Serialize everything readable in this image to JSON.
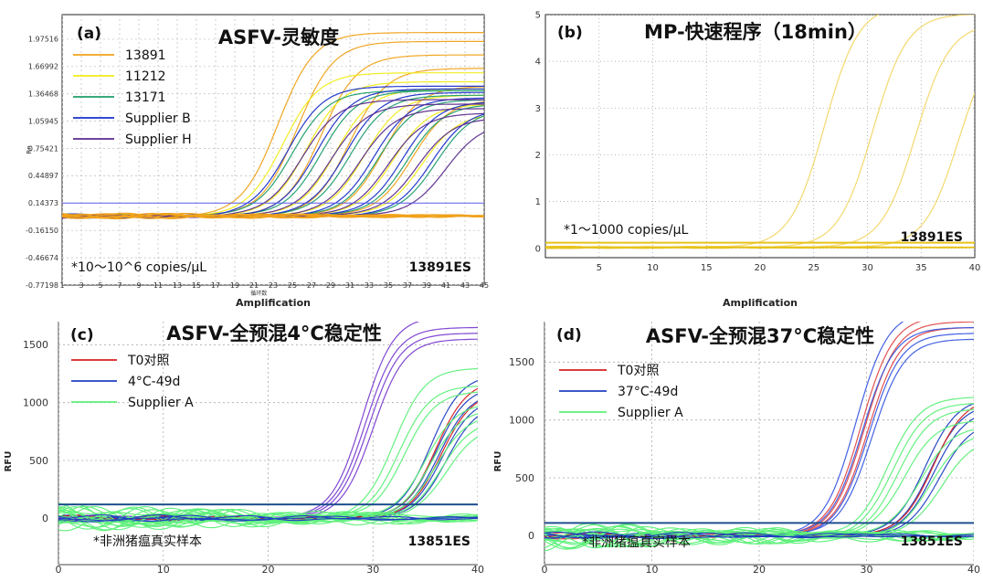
{
  "chart_data": [
    {
      "id": "a",
      "type": "line",
      "panel_tag": "(a)",
      "title": "ASFV-灵敏度",
      "xlabel": "Amplification",
      "xlabel_sub": "循环数",
      "ylabel": "Rn",
      "xlim": [
        1,
        45
      ],
      "ylim": [
        -0.77198,
        2.25
      ],
      "x_ticks": [
        1,
        3,
        5,
        7,
        9,
        11,
        13,
        15,
        17,
        19,
        21,
        23,
        25,
        27,
        29,
        31,
        33,
        35,
        37,
        39,
        41,
        43,
        45
      ],
      "x_tick_labels": [
        "1",
        "3",
        "5",
        "7",
        "9",
        "11",
        "13",
        "15",
        "17",
        "19",
        "21",
        "23",
        "25",
        "27",
        "29",
        "31",
        "33",
        "35",
        "37",
        "39",
        "41",
        "43",
        "45"
      ],
      "y_ticks": [
        -0.77198,
        -0.46674,
        -0.1615,
        0.14373,
        0.44897,
        0.75421,
        1.05945,
        1.36468,
        1.66992,
        1.97516
      ],
      "y_tick_labels": [
        "-0.77198",
        "-0.46674",
        "-0.16150",
        "0.14373",
        "0.44897",
        "0.75421",
        "1.05945",
        "1.36468",
        "1.66992",
        "1.97516"
      ],
      "threshold": 0.14373,
      "threshold_color": "#5b5bf0",
      "grid": true,
      "legend": [
        {
          "name": "13891",
          "color": "#f0a21a"
        },
        {
          "name": "11212",
          "color": "#f0ec18"
        },
        {
          "name": "13171",
          "color": "#1e9e6a"
        },
        {
          "name": "Supplier B",
          "color": "#1a2fc8"
        },
        {
          "name": "Supplier H",
          "color": "#5a2a8c"
        }
      ],
      "legend_position": "top-left",
      "annotation": "*10～10^6 copies/μL",
      "sample_label": "13891ES",
      "curve_groups": [
        {
          "color": "#f0a21a",
          "ct": [
            23.5,
            25.5,
            28,
            31,
            34.5,
            37.5
          ],
          "plateau": [
            2.05,
            1.95,
            1.8,
            1.65,
            1.45,
            1.3
          ]
        },
        {
          "color": "#f0ec18",
          "ct": [
            24,
            26.5,
            29.5,
            32.5,
            35.5,
            38.5
          ],
          "plateau": [
            1.6,
            1.5,
            1.42,
            1.35,
            1.25,
            1.15
          ]
        },
        {
          "color": "#1e9e6a",
          "ct": [
            25,
            28,
            31,
            34,
            37,
            40
          ],
          "plateau": [
            1.4,
            1.4,
            1.35,
            1.3,
            1.25,
            1.2
          ]
        },
        {
          "color": "#1a2fc8",
          "ct": [
            24.5,
            27.5,
            30.5,
            33.5,
            36.5,
            39.5
          ],
          "plateau": [
            1.45,
            1.42,
            1.38,
            1.32,
            1.28,
            1.2
          ]
        },
        {
          "color": "#5a2a8c",
          "ct": [
            26,
            29,
            32,
            35,
            38,
            41
          ],
          "plateau": [
            1.3,
            1.25,
            1.2,
            1.15,
            1.1,
            1.05
          ]
        }
      ]
    },
    {
      "id": "b",
      "type": "line",
      "panel_tag": "(b)",
      "title": "MP-快速程序（18min）",
      "xlabel": "Amplification",
      "xlim": [
        0,
        40
      ],
      "ylim": [
        -0.2,
        5
      ],
      "x_ticks": [
        5,
        10,
        15,
        20,
        25,
        30,
        35,
        40
      ],
      "x_tick_labels": [
        "5",
        "10",
        "15",
        "20",
        "25",
        "30",
        "35",
        "40"
      ],
      "y_ticks": [
        0,
        1,
        2,
        3,
        4,
        5
      ],
      "y_tick_labels": [
        "0",
        "1",
        "2",
        "3",
        "4",
        "5"
      ],
      "threshold": 0.12,
      "threshold_color": "#e8c21a",
      "grid": true,
      "annotation": "*1～1000 copies/μL",
      "sample_label": "13891ES",
      "curve_groups": [
        {
          "color": "#f2d560",
          "ct": [
            26,
            30.5,
            34.5,
            38.5
          ],
          "plateau": [
            5.2,
            5.0,
            4.8,
            4.6
          ]
        }
      ]
    },
    {
      "id": "c",
      "type": "line",
      "panel_tag": "(c)",
      "title": "ASFV-全预混4°C稳定性",
      "ylabel": "RFU",
      "xlim": [
        0,
        40
      ],
      "ylim": [
        -400,
        1700
      ],
      "x_ticks": [
        0,
        10,
        20,
        30,
        40
      ],
      "x_tick_labels": [
        "0",
        "10",
        "20",
        "30",
        "40"
      ],
      "y_ticks": [
        0,
        500,
        1000,
        1500
      ],
      "y_tick_labels": [
        "0",
        "500",
        "1000",
        "1500"
      ],
      "threshold": 120,
      "threshold_color": "#1f4f8f",
      "grid": true,
      "legend": [
        {
          "name": "T0对照",
          "color": "#d62020"
        },
        {
          "name": "4°C-49d",
          "color": "#2040c0"
        },
        {
          "name": "Supplier A",
          "color": "#5ef07a"
        }
      ],
      "legend_position": "top-left",
      "annotation": "*非洲猪瘟真实样本",
      "sample_label": "13851ES",
      "curve_groups": [
        {
          "color": "#7a3ed0",
          "ct": [
            29,
            29.3,
            29.6,
            30
          ],
          "plateau": [
            1750,
            1650,
            1600,
            1550
          ]
        },
        {
          "color": "#2040c0",
          "ct": [
            35.5,
            36,
            36.3,
            36.6,
            37
          ],
          "plateau": [
            1250,
            1150,
            1100,
            1050,
            1000
          ]
        },
        {
          "color": "#d62020",
          "ct": [
            36,
            36.5
          ],
          "plateau": [
            1200,
            1100
          ]
        },
        {
          "color": "#5ef07a",
          "ct": [
            32,
            32.5,
            33,
            35,
            35.5,
            36,
            36.5,
            37
          ],
          "plateau": [
            1300,
            1150,
            1100,
            1000,
            950,
            900,
            850,
            800
          ]
        }
      ]
    },
    {
      "id": "d",
      "type": "line",
      "panel_tag": "(d)",
      "title": "ASFV-全预混37°C稳定性",
      "ylabel": "RFU",
      "xlim": [
        0,
        40
      ],
      "ylim": [
        -250,
        1850
      ],
      "x_ticks": [
        0,
        10,
        20,
        30,
        40
      ],
      "x_tick_labels": [
        "0",
        "10",
        "20",
        "30",
        "40"
      ],
      "y_ticks": [
        0,
        500,
        1000,
        1500
      ],
      "y_tick_labels": [
        "0",
        "500",
        "1000",
        "1500"
      ],
      "threshold": 110,
      "threshold_color": "#1f4f8f",
      "grid": true,
      "legend": [
        {
          "name": "T0对照",
          "color": "#d62020"
        },
        {
          "name": "37°C-49d",
          "color": "#2040c0"
        },
        {
          "name": "Supplier A",
          "color": "#5ef07a"
        }
      ],
      "legend_position": "top-left",
      "annotation": "*非洲猪瘟真实样本",
      "sample_label": "13851ES",
      "curve_groups": [
        {
          "color": "#e04848",
          "ct": [
            29.5,
            29.8,
            30.1
          ],
          "plateau": [
            1900,
            1850,
            1800
          ]
        },
        {
          "color": "#3a5ae0",
          "ct": [
            29,
            29.6,
            30.2,
            30.5
          ],
          "plateau": [
            1950,
            1800,
            1750,
            1700
          ]
        },
        {
          "color": "#2040c0",
          "ct": [
            35.5,
            36,
            36.3,
            36.8
          ],
          "plateau": [
            1200,
            1150,
            1100,
            1000
          ]
        },
        {
          "color": "#d62020",
          "ct": [
            36.2
          ],
          "plateau": [
            1200
          ]
        },
        {
          "color": "#5ef07a",
          "ct": [
            32,
            32.5,
            33,
            33.5,
            35,
            36,
            37
          ],
          "plateau": [
            1200,
            1150,
            1100,
            1000,
            950,
            900,
            850
          ]
        }
      ]
    }
  ]
}
